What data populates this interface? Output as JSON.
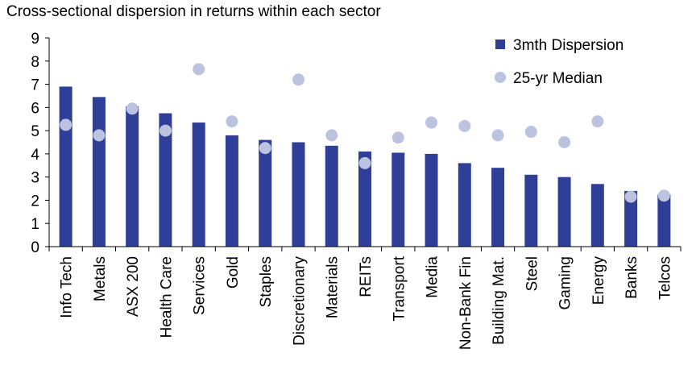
{
  "chart_data": {
    "type": "bar",
    "title": "Cross-sectional dispersion in returns within each sector",
    "xlabel": "",
    "ylabel": "",
    "ylim": [
      0,
      9
    ],
    "yticks": [
      0,
      1,
      2,
      3,
      4,
      5,
      6,
      7,
      8,
      9
    ],
    "grid": false,
    "legend_position": "top-right",
    "categories": [
      "Info Tech",
      "Metals",
      "ASX 200",
      "Health Care",
      "Services",
      "Gold",
      "Staples",
      "Discretionary",
      "Materials",
      "REITs",
      "Transport",
      "Media",
      "Non-Bank Fin",
      "Building Mat.",
      "Steel",
      "Gaming",
      "Energy",
      "Banks",
      "Telcos"
    ],
    "series": [
      {
        "name": "3mth Dispersion",
        "kind": "bar",
        "color": "#2f3f98",
        "values": [
          6.9,
          6.45,
          6.05,
          5.75,
          5.35,
          4.8,
          4.6,
          4.5,
          4.35,
          4.1,
          4.05,
          4.0,
          3.6,
          3.4,
          3.1,
          3.0,
          2.7,
          2.4,
          2.25
        ]
      },
      {
        "name": "25-yr Median",
        "kind": "marker",
        "color": "#bcc3e0",
        "values": [
          5.25,
          4.8,
          5.95,
          5.0,
          7.65,
          5.4,
          4.25,
          7.2,
          4.8,
          3.6,
          4.7,
          5.35,
          5.2,
          4.8,
          4.95,
          4.5,
          5.4,
          2.15,
          2.2
        ]
      }
    ]
  }
}
